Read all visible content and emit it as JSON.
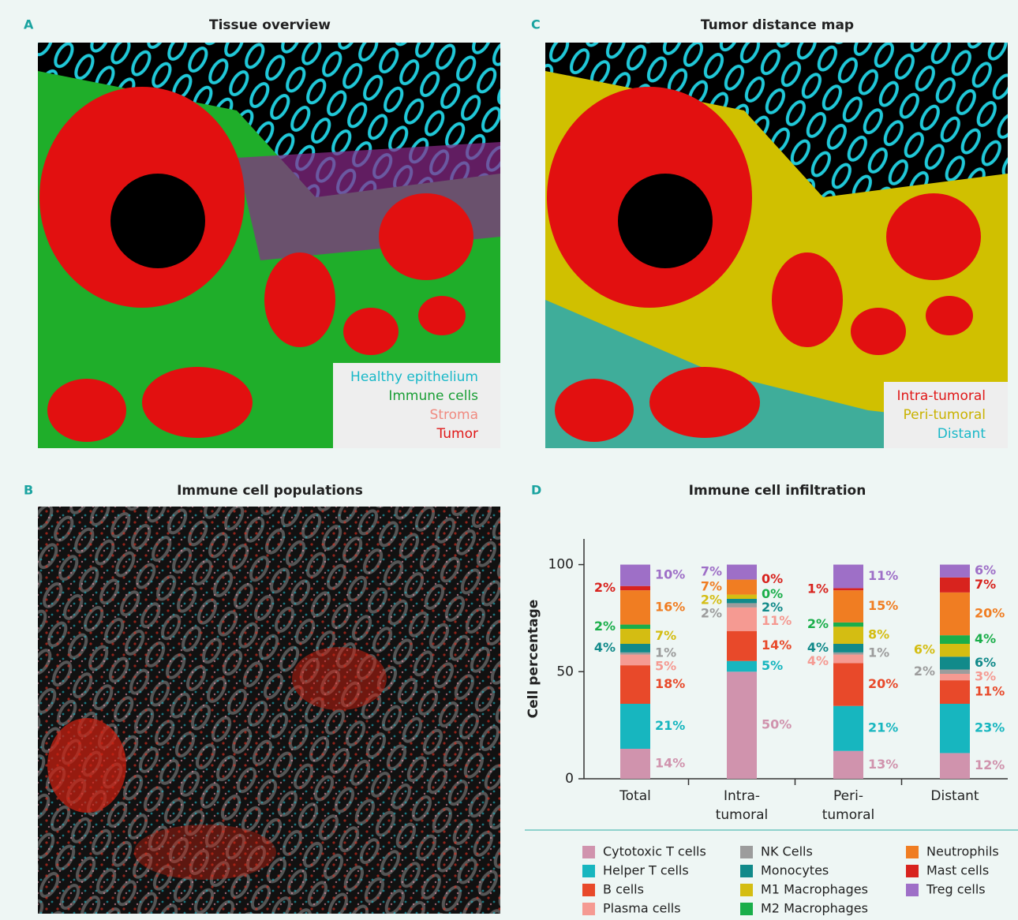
{
  "panels": [
    {
      "letter": "A",
      "title": "Tissue overview",
      "legend": [
        {
          "label": "Healthy epithelium",
          "color": "#19b8c8"
        },
        {
          "label": "Immune cells",
          "color": "#1a9e35"
        },
        {
          "label": "Stroma",
          "color": "#f08a80"
        },
        {
          "label": "Tumor",
          "color": "#e01818"
        }
      ]
    },
    {
      "letter": "C",
      "title": "Tumor distance map",
      "legend": [
        {
          "label": "Intra-tumoral",
          "color": "#e01818"
        },
        {
          "label": "Peri-tumoral",
          "color": "#c9b200"
        },
        {
          "label": "Distant",
          "color": "#19b8c8"
        }
      ]
    },
    {
      "letter": "B",
      "title": "Immune cell populations"
    },
    {
      "letter": "D"
    }
  ],
  "chart_data": {
    "type": "stacked-bar",
    "title": "Immune cell infiltration",
    "y_label": "Cell percentage",
    "categories": [
      "Total",
      "Intra-\ntumoral",
      "Peri-\ntumoral",
      "Distant"
    ],
    "ylim": [
      0,
      112
    ],
    "yticks": [
      0,
      50,
      100
    ],
    "series": [
      {
        "name": "Cytotoxic T cells",
        "color": "#d093ad",
        "values": [
          14,
          50,
          13,
          12
        ],
        "value_labels": [
          "14%",
          "50%",
          "13%",
          "12%"
        ]
      },
      {
        "name": "Helper T cells",
        "color": "#17b6bf",
        "values": [
          21,
          5,
          21,
          23
        ],
        "value_labels": [
          "21%",
          "5%",
          "21%",
          "23%"
        ]
      },
      {
        "name": "B cells",
        "color": "#e8492a",
        "values": [
          18,
          14,
          20,
          11
        ],
        "value_labels": [
          "18%",
          "14%",
          "20%",
          "11%"
        ]
      },
      {
        "name": "Plasma cells",
        "color": "#f59a92",
        "values": [
          5,
          11,
          4,
          3
        ],
        "value_labels": [
          "5%",
          "11%",
          "4%",
          "3%"
        ]
      },
      {
        "name": "NK Cells",
        "color": "#9c9c9c",
        "values": [
          1,
          2,
          1,
          2
        ],
        "value_labels": [
          "1%",
          "2%",
          "1%",
          "2%"
        ]
      },
      {
        "name": "Monocytes",
        "color": "#118a8a",
        "values": [
          4,
          2,
          4,
          6
        ],
        "value_labels": [
          "4%",
          "2%",
          "4%",
          "6%"
        ]
      },
      {
        "name": "M1 Macrophages",
        "color": "#d4bd12",
        "values": [
          7,
          2,
          8,
          6
        ],
        "value_labels": [
          "7%",
          "2%",
          "8%",
          "6%"
        ]
      },
      {
        "name": "M2 Macrophages",
        "color": "#1aae4a",
        "values": [
          2,
          0,
          2,
          4
        ],
        "value_labels": [
          "2%",
          "0%",
          "2%",
          "4%"
        ]
      },
      {
        "name": "Neutrophils",
        "color": "#f07d22",
        "values": [
          16,
          7,
          15,
          20
        ],
        "value_labels": [
          "16%",
          "7%",
          "15%",
          "20%"
        ]
      },
      {
        "name": "Mast cells",
        "color": "#d8231e",
        "values": [
          2,
          0,
          1,
          7
        ],
        "value_labels": [
          "2%",
          "0%",
          "1%",
          "7%"
        ]
      },
      {
        "name": "Treg cells",
        "color": "#9e6fc7",
        "values": [
          10,
          7,
          11,
          6
        ],
        "value_labels": [
          "10%",
          "7%",
          "11%",
          "6%"
        ]
      }
    ]
  }
}
